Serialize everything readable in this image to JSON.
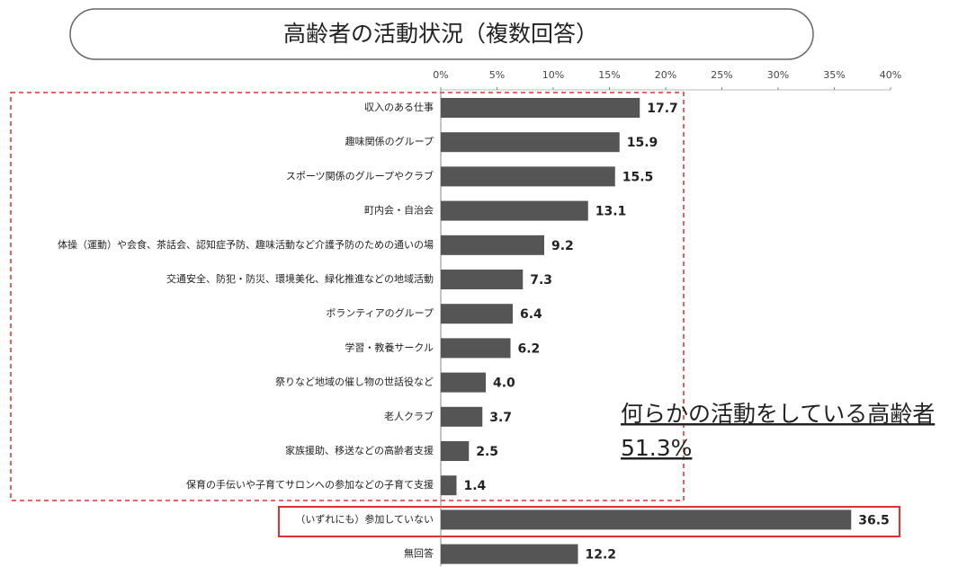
{
  "chart_data": {
    "type": "bar",
    "orientation": "horizontal",
    "title": "高齢者の活動状況（複数回答）",
    "categories": [
      "収入のある仕事",
      "趣味関係のグループ",
      "スポーツ関係のグループやクラブ",
      "町内会・自治会",
      "体操（運動）や会食、茶話会、認知症予防、趣味活動など介護予防のための通いの場",
      "交通安全、防犯・防災、環境美化、緑化推進などの地域活動",
      "ボランティアのグループ",
      "学習・教養サークル",
      "祭りなど地域の催し物の世話役など",
      "老人クラブ",
      "家族援助、移送などの高齢者支援",
      "保育の手伝いや子育てサロンへの参加などの子育て支援",
      "（いずれにも）参加していない",
      "無回答"
    ],
    "values": [
      17.7,
      15.9,
      15.5,
      13.1,
      9.2,
      7.3,
      6.4,
      6.2,
      4.0,
      3.7,
      2.5,
      1.4,
      36.5,
      12.2
    ],
    "value_labels": [
      "17.7",
      "15.9",
      "15.5",
      "13.1",
      "9.2",
      "7.3",
      "6.4",
      "6.2",
      "4.0",
      "3.7",
      "2.5",
      "1.4",
      "36.5",
      "12.2"
    ],
    "color": "#555555",
    "xlim": [
      0,
      40
    ],
    "xticks": [
      {
        "value": 0,
        "label": "0%"
      },
      {
        "value": 5,
        "label": "5%"
      },
      {
        "value": 10,
        "label": "10%"
      },
      {
        "value": 15,
        "label": "15%"
      },
      {
        "value": 20,
        "label": "20%"
      },
      {
        "value": 25,
        "label": "25%"
      },
      {
        "value": 30,
        "label": "30%"
      },
      {
        "value": 35,
        "label": "35%"
      },
      {
        "value": 40,
        "label": "40%"
      }
    ],
    "annotations": [
      "何らかの活動をしている高齢者",
      "51.3%"
    ]
  }
}
